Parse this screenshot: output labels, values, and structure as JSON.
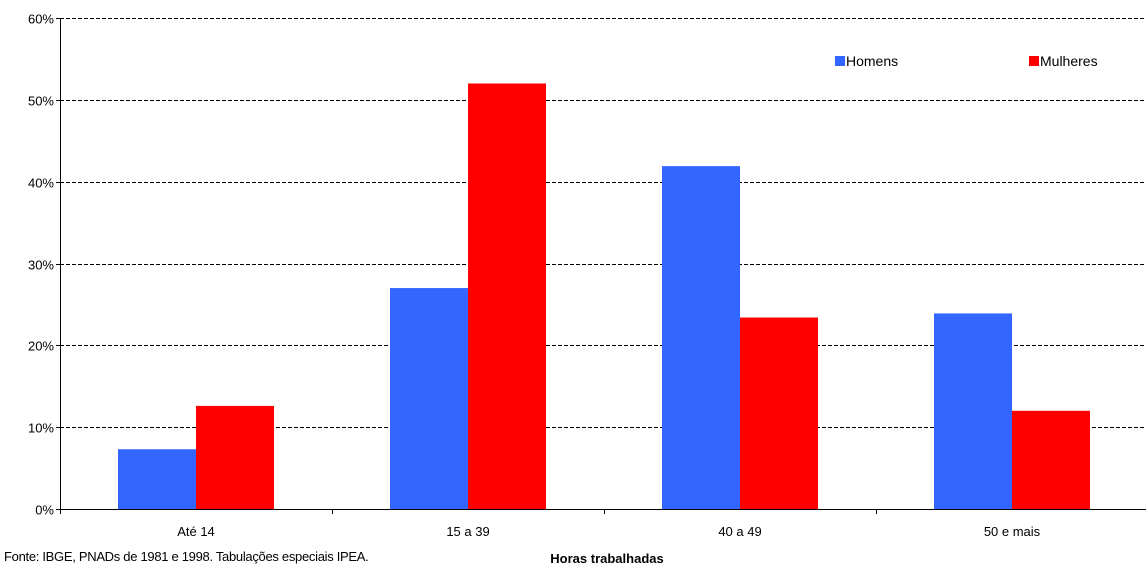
{
  "chart_data": {
    "type": "bar",
    "categories": [
      "Até 14",
      "15 a 39",
      "40 a 49",
      "50 e mais"
    ],
    "series": [
      {
        "name": "Homens",
        "values": [
          7.3,
          27,
          41.9,
          23.9
        ],
        "color": "#3366ff"
      },
      {
        "name": "Mulheres",
        "values": [
          12.6,
          52,
          23.4,
          12
        ],
        "color": "#ff0000"
      }
    ],
    "xlabel": "Horas trabalhadas",
    "ylabel": "",
    "ylim": [
      0,
      60
    ],
    "yticks": [
      0,
      10,
      20,
      30,
      40,
      50,
      60
    ],
    "ytick_labels": [
      "0%",
      "10%",
      "20%",
      "30%",
      "40%",
      "50%",
      "60%"
    ],
    "grid": true,
    "legend_position": "top-right"
  },
  "source_note": "Fonte: IBGE, PNADs de 1981 e 1998. Tabulações especiais IPEA."
}
